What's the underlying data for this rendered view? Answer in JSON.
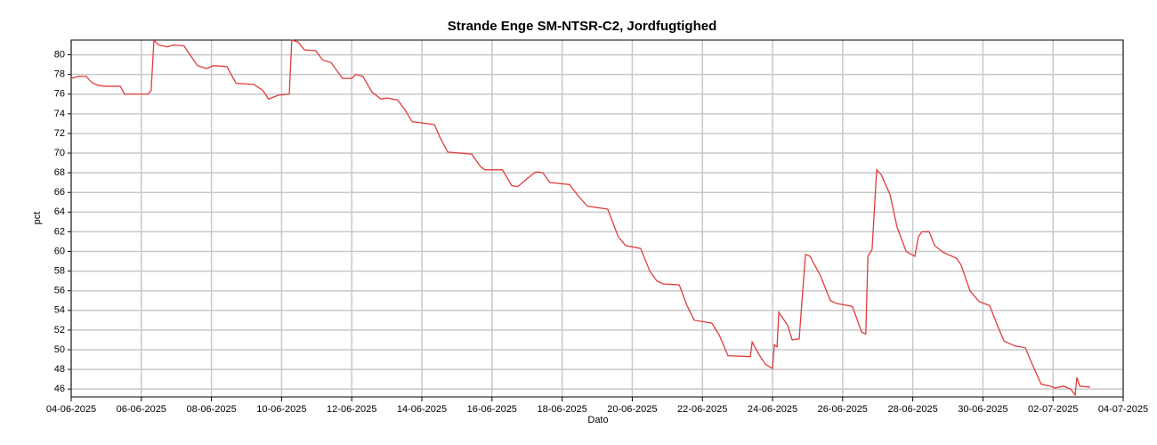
{
  "chart_data": {
    "type": "line",
    "title": "Strande Enge SM-NTSR-C2, Jordfugtighed",
    "xlabel": "Dato",
    "ylabel": "pct",
    "xlim": [
      0,
      30
    ],
    "ylim": [
      45.2,
      81.5
    ],
    "xticks": [
      {
        "value": 0,
        "label": "04-06-2025"
      },
      {
        "value": 2,
        "label": "06-06-2025"
      },
      {
        "value": 4,
        "label": "08-06-2025"
      },
      {
        "value": 6,
        "label": "10-06-2025"
      },
      {
        "value": 8,
        "label": "12-06-2025"
      },
      {
        "value": 10,
        "label": "14-06-2025"
      },
      {
        "value": 12,
        "label": "16-06-2025"
      },
      {
        "value": 14,
        "label": "18-06-2025"
      },
      {
        "value": 16,
        "label": "20-06-2025"
      },
      {
        "value": 18,
        "label": "22-06-2025"
      },
      {
        "value": 20,
        "label": "24-06-2025"
      },
      {
        "value": 22,
        "label": "26-06-2025"
      },
      {
        "value": 24,
        "label": "28-06-2025"
      },
      {
        "value": 26,
        "label": "30-06-2025"
      },
      {
        "value": 28,
        "label": "02-07-2025"
      },
      {
        "value": 30,
        "label": "04-07-2025"
      }
    ],
    "yticks": [
      46,
      48,
      50,
      52,
      54,
      56,
      58,
      60,
      62,
      64,
      66,
      68,
      70,
      72,
      74,
      76,
      78,
      80
    ],
    "grid": true,
    "series": [
      {
        "color": "#e03c3c",
        "x": [
          0,
          0.2,
          0.43,
          0.58,
          0.76,
          0.96,
          1.4,
          1.52,
          2.2,
          2.28,
          2.36,
          2.49,
          2.74,
          2.92,
          3.22,
          3.35,
          3.6,
          3.86,
          4.06,
          4.44,
          4.7,
          5.2,
          5.46,
          5.63,
          5.91,
          6.22,
          6.29,
          6.47,
          6.65,
          6.98,
          7.16,
          7.41,
          7.74,
          8.0,
          8.12,
          8.32,
          8.58,
          8.83,
          9.01,
          9.31,
          9.52,
          9.72,
          10.36,
          10.53,
          10.74,
          11.42,
          11.68,
          11.8,
          12.3,
          12.56,
          12.74,
          13.0,
          13.25,
          13.45,
          13.65,
          14.21,
          14.47,
          14.72,
          15.3,
          15.6,
          15.81,
          16.24,
          16.5,
          16.7,
          16.88,
          17.34,
          17.56,
          17.77,
          18.27,
          18.48,
          18.73,
          19.37,
          19.42,
          19.6,
          19.8,
          20.0,
          20.05,
          20.13,
          20.18,
          20.43,
          20.56,
          20.76,
          20.94,
          21.07,
          21.37,
          21.65,
          21.83,
          22.28,
          22.54,
          22.66,
          22.72,
          22.84,
          22.97,
          23.1,
          23.35,
          23.55,
          23.81,
          24.06,
          24.16,
          24.26,
          24.47,
          24.62,
          24.87,
          25.25,
          25.38,
          25.63,
          25.89,
          26.19,
          26.4,
          26.6,
          26.9,
          27.21,
          27.41,
          27.66,
          27.92,
          28.05,
          28.3,
          28.5,
          28.63,
          28.68,
          28.76,
          29.06
        ],
        "values": [
          77.6,
          77.8,
          77.8,
          77.2,
          76.9,
          76.8,
          76.8,
          76.0,
          76.0,
          76.4,
          81.5,
          81.0,
          80.8,
          81.0,
          80.9,
          80.2,
          78.9,
          78.6,
          78.9,
          78.8,
          77.1,
          77.0,
          76.4,
          75.5,
          75.9,
          76.0,
          81.5,
          81.3,
          80.5,
          80.4,
          79.5,
          79.2,
          77.6,
          77.6,
          78.0,
          77.8,
          76.2,
          75.5,
          75.6,
          75.4,
          74.4,
          73.2,
          72.9,
          71.5,
          70.1,
          69.9,
          68.6,
          68.3,
          68.3,
          66.7,
          66.6,
          67.4,
          68.1,
          68.0,
          67.0,
          66.8,
          65.6,
          64.6,
          64.3,
          61.5,
          60.6,
          60.3,
          58.0,
          57.0,
          56.7,
          56.6,
          54.5,
          53.0,
          52.7,
          51.5,
          49.4,
          49.3,
          50.8,
          49.6,
          48.5,
          48.1,
          50.5,
          50.3,
          53.8,
          52.5,
          51.0,
          51.1,
          59.7,
          59.5,
          57.5,
          55.0,
          54.7,
          54.4,
          51.8,
          51.6,
          59.5,
          60.2,
          68.3,
          67.8,
          65.8,
          62.5,
          60.0,
          59.5,
          61.5,
          62.0,
          62.0,
          60.6,
          59.9,
          59.3,
          58.6,
          56.0,
          54.9,
          54.5,
          52.6,
          50.9,
          50.4,
          50.2,
          48.5,
          46.5,
          46.3,
          46.1,
          46.3,
          46.0,
          45.4,
          47.2,
          46.3,
          46.2
        ]
      }
    ]
  }
}
